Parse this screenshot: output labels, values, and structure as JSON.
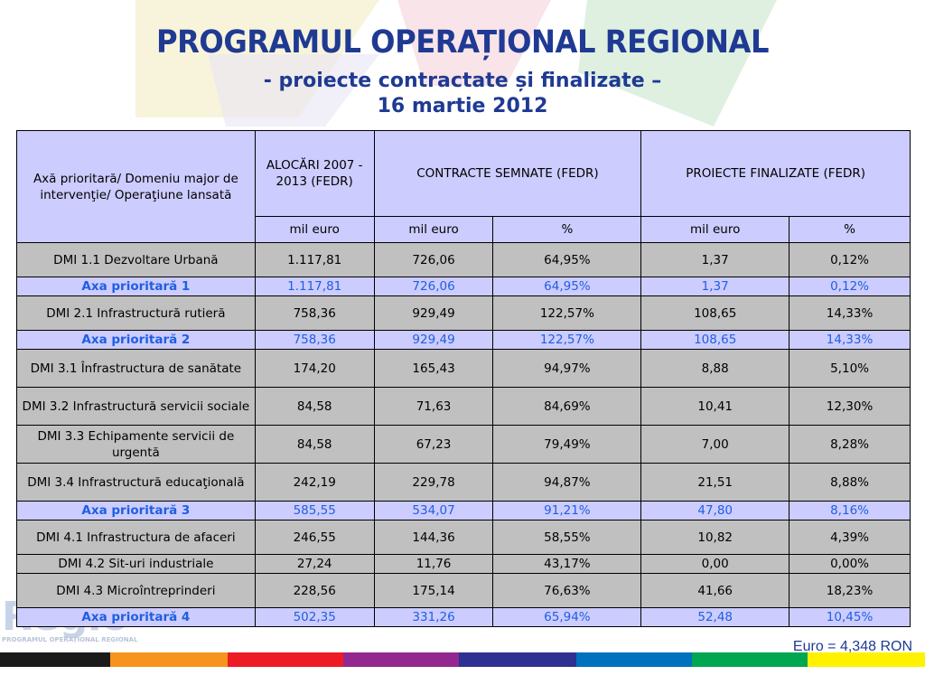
{
  "header": {
    "title": "PROGRAMUL OPERAȚIONAL REGIONAL",
    "subtitle": "- proiecte contractate și finalizate –",
    "date": "16 martie 2012"
  },
  "table": {
    "headers": {
      "axis": "Axă prioritară/ Domeniu major de intervenţie/ Operaţiune lansată",
      "alocari": "ALOCĂRI 2007 - 2013 (FEDR)",
      "contracte": "CONTRACTE SEMNATE (FEDR)",
      "finalizate": "PROIECTE FINALIZATE (FEDR)"
    },
    "units": [
      "mil euro",
      "mil euro",
      "%",
      "mil euro",
      "%"
    ],
    "rows": [
      {
        "label": "DMI 1.1 Dezvoltare Urbană",
        "alocari": "1.117,81",
        "contr": "726,06",
        "contr_pct": "64,95%",
        "fin": "1,37",
        "fin_pct": "0,12%"
      },
      {
        "label": "Axa prioritară 1",
        "alocari": "1.117,81",
        "contr": "726,06",
        "contr_pct": "64,95%",
        "fin": "1,37",
        "fin_pct": "0,12%"
      },
      {
        "label": "DMI 2.1 Infrastructură rutieră",
        "alocari": "758,36",
        "contr": "929,49",
        "contr_pct": "122,57%",
        "fin": "108,65",
        "fin_pct": "14,33%"
      },
      {
        "label": "Axa prioritară 2",
        "alocari": "758,36",
        "contr": "929,49",
        "contr_pct": "122,57%",
        "fin": "108,65",
        "fin_pct": "14,33%"
      },
      {
        "label": "DMI 3.1 Înfrastructura de sanătate",
        "alocari": "174,20",
        "contr": "165,43",
        "contr_pct": "94,97%",
        "fin": "8,88",
        "fin_pct": "5,10%"
      },
      {
        "label": "DMI 3.2 Infrastructură servicii sociale",
        "alocari": "84,58",
        "contr": "71,63",
        "contr_pct": "84,69%",
        "fin": "10,41",
        "fin_pct": "12,30%"
      },
      {
        "label": "DMI 3.3 Echipamente servicii de urgentă",
        "alocari": "84,58",
        "contr": "67,23",
        "contr_pct": "79,49%",
        "fin": "7,00",
        "fin_pct": "8,28%"
      },
      {
        "label": "DMI 3.4 Infrastructură educaţională",
        "alocari": "242,19",
        "contr": "229,78",
        "contr_pct": "94,87%",
        "fin": "21,51",
        "fin_pct": "8,88%"
      },
      {
        "label": "Axa prioritară 3",
        "alocari": "585,55",
        "contr": "534,07",
        "contr_pct": "91,21%",
        "fin": "47,80",
        "fin_pct": "8,16%"
      },
      {
        "label": "DMI 4.1 Infrastructura de afaceri",
        "alocari": "246,55",
        "contr": "144,36",
        "contr_pct": "58,55%",
        "fin": "10,82",
        "fin_pct": "4,39%"
      },
      {
        "label": "DMI 4.2 Sit-uri industriale",
        "alocari": "27,24",
        "contr": "11,76",
        "contr_pct": "43,17%",
        "fin": "0,00",
        "fin_pct": "0,00%"
      },
      {
        "label": "DMI 4.3 Microîntreprinderi",
        "alocari": "228,56",
        "contr": "175,14",
        "contr_pct": "76,63%",
        "fin": "41,66",
        "fin_pct": "18,23%"
      },
      {
        "label": "Axa prioritară 4",
        "alocari": "502,35",
        "contr": "331,26",
        "contr_pct": "65,94%",
        "fin": "52,48",
        "fin_pct": "10,45%"
      }
    ]
  },
  "footer": {
    "exchange_rate": "Euro = 4,348 RON",
    "logo_text": "Regio",
    "logo_caption": "PROGRAMUL OPERAȚIONAL REGIONAL"
  },
  "colors": {
    "title": "#1f3a93",
    "axa_text": "#1f5fe0",
    "header_bg": "#ccccff",
    "row_bg": "#c0c0c0",
    "colorbar": [
      "#1a1a1a",
      "#f7941d",
      "#ed1c24",
      "#e8197a",
      "#93278f",
      "#2e3192",
      "#0071bc",
      "#00a651",
      "#8dc63f",
      "#fff200"
    ]
  }
}
